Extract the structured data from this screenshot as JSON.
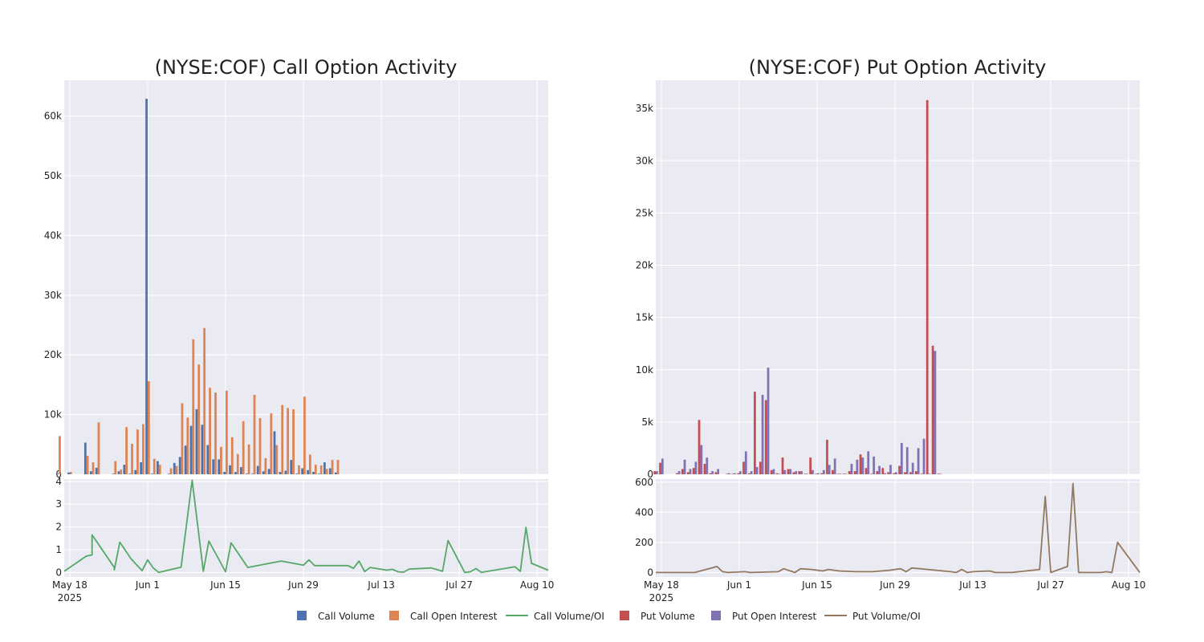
{
  "legend": [
    {
      "label": "Call Volume",
      "kind": "box",
      "color": "#4c72b0"
    },
    {
      "label": "Call Open Interest",
      "kind": "box",
      "color": "#dd8452"
    },
    {
      "label": "Call Volume/OI",
      "kind": "line",
      "color": "#55a868"
    },
    {
      "label": "Put Volume",
      "kind": "box",
      "color": "#c44e52"
    },
    {
      "label": "Put Open Interest",
      "kind": "box",
      "color": "#8172b3"
    },
    {
      "label": "Put Volume/OI",
      "kind": "line",
      "color": "#937860"
    }
  ],
  "chart_data": [
    {
      "id": "call",
      "type": "bar",
      "title": "(NYSE:COF) Call Option Activity",
      "x_unit": "date",
      "x_range": [
        "2025-05-17",
        "2025-08-12"
      ],
      "x_ticks": [
        {
          "date": "2025-05-18",
          "label": "May 18",
          "sublabel": "2025"
        },
        {
          "date": "2025-06-01",
          "label": "Jun 1"
        },
        {
          "date": "2025-06-15",
          "label": "Jun 15"
        },
        {
          "date": "2025-06-29",
          "label": "Jun 29"
        },
        {
          "date": "2025-07-13",
          "label": "Jul 13"
        },
        {
          "date": "2025-07-27",
          "label": "Jul 27"
        },
        {
          "date": "2025-08-10",
          "label": "Aug 10"
        }
      ],
      "bar_ylim": [
        0,
        66000
      ],
      "bar_yticks": [
        {
          "v": 0,
          "label": "0"
        },
        {
          "v": 10000,
          "label": "10k"
        },
        {
          "v": 20000,
          "label": "20k"
        },
        {
          "v": 30000,
          "label": "30k"
        },
        {
          "v": 40000,
          "label": "40k"
        },
        {
          "v": 50000,
          "label": "50k"
        },
        {
          "v": 60000,
          "label": "60k"
        }
      ],
      "ratio_ylim": [
        -0.2,
        4.1
      ],
      "ratio_yticks": [
        {
          "v": 0,
          "label": "0"
        },
        {
          "v": 1,
          "label": "1"
        },
        {
          "v": 2,
          "label": "2"
        },
        {
          "v": 3,
          "label": "3"
        },
        {
          "v": 4,
          "label": "4"
        }
      ],
      "series": [
        {
          "name": "Call Volume",
          "color": "#4c72b0"
        },
        {
          "name": "Call Open Interest",
          "color": "#dd8452"
        },
        {
          "name": "Call Volume/OI",
          "color": "#55a868"
        }
      ],
      "bars": [
        {
          "x": "2025-05-16",
          "volume": 100,
          "oi": 6400
        },
        {
          "x": "2025-05-18",
          "volume": 300,
          "oi": 400
        },
        {
          "x": "2025-05-21",
          "volume": 5300,
          "oi": 3100
        },
        {
          "x": "2025-05-22",
          "volume": 500,
          "oi": 2000
        },
        {
          "x": "2025-05-23",
          "volume": 1100,
          "oi": 8700
        },
        {
          "x": "2025-05-26",
          "volume": 100,
          "oi": 2200
        },
        {
          "x": "2025-05-27",
          "volume": 500,
          "oi": 800
        },
        {
          "x": "2025-05-28",
          "volume": 1600,
          "oi": 7900
        },
        {
          "x": "2025-05-29",
          "volume": 100,
          "oi": 5100
        },
        {
          "x": "2025-05-30",
          "volume": 700,
          "oi": 7500
        },
        {
          "x": "2025-05-31",
          "volume": 2000,
          "oi": 8400
        },
        {
          "x": "2025-06-01",
          "volume": 62900,
          "oi": 15600
        },
        {
          "x": "2025-06-02",
          "volume": 100,
          "oi": 2600
        },
        {
          "x": "2025-06-03",
          "volume": 2200,
          "oi": 1600
        },
        {
          "x": "2025-06-05",
          "volume": 100,
          "oi": 1000
        },
        {
          "x": "2025-06-06",
          "volume": 1900,
          "oi": 1400
        },
        {
          "x": "2025-06-07",
          "volume": 2900,
          "oi": 11900
        },
        {
          "x": "2025-06-08",
          "volume": 4800,
          "oi": 9500
        },
        {
          "x": "2025-06-09",
          "volume": 8100,
          "oi": 22600
        },
        {
          "x": "2025-06-10",
          "volume": 10900,
          "oi": 18400
        },
        {
          "x": "2025-06-11",
          "volume": 8300,
          "oi": 24500
        },
        {
          "x": "2025-06-12",
          "volume": 4900,
          "oi": 14500
        },
        {
          "x": "2025-06-13",
          "volume": 2500,
          "oi": 13700
        },
        {
          "x": "2025-06-14",
          "volume": 2500,
          "oi": 4600
        },
        {
          "x": "2025-06-15",
          "volume": 400,
          "oi": 14000
        },
        {
          "x": "2025-06-16",
          "volume": 1500,
          "oi": 6200
        },
        {
          "x": "2025-06-17",
          "volume": 400,
          "oi": 3400
        },
        {
          "x": "2025-06-18",
          "volume": 1200,
          "oi": 8900
        },
        {
          "x": "2025-06-19",
          "volume": 100,
          "oi": 5000
        },
        {
          "x": "2025-06-20",
          "volume": 100,
          "oi": 13300
        },
        {
          "x": "2025-06-21",
          "volume": 1400,
          "oi": 9400
        },
        {
          "x": "2025-06-22",
          "volume": 500,
          "oi": 2700
        },
        {
          "x": "2025-06-23",
          "volume": 900,
          "oi": 10200
        },
        {
          "x": "2025-06-24",
          "volume": 7200,
          "oi": 4900
        },
        {
          "x": "2025-06-25",
          "volume": 400,
          "oi": 11600
        },
        {
          "x": "2025-06-26",
          "volume": 600,
          "oi": 11100
        },
        {
          "x": "2025-06-27",
          "volume": 2400,
          "oi": 10900
        },
        {
          "x": "2025-06-28",
          "volume": 100,
          "oi": 1500
        },
        {
          "x": "2025-06-29",
          "volume": 1000,
          "oi": 13000
        },
        {
          "x": "2025-06-30",
          "volume": 700,
          "oi": 3300
        },
        {
          "x": "2025-07-01",
          "volume": 400,
          "oi": 1600
        },
        {
          "x": "2025-07-02",
          "volume": 100,
          "oi": 1500
        },
        {
          "x": "2025-07-03",
          "volume": 2000,
          "oi": 900
        },
        {
          "x": "2025-07-04",
          "volume": 1000,
          "oi": 2400
        },
        {
          "x": "2025-07-05",
          "volume": 300,
          "oi": 2400
        }
      ],
      "ratio": [
        {
          "x": "2025-05-17",
          "y": 0.05
        },
        {
          "x": "2025-05-21",
          "y": 0.72
        },
        {
          "x": "2025-05-22",
          "y": 0.77
        },
        {
          "x": "2025-05-22",
          "y": 1.65
        },
        {
          "x": "2025-05-26",
          "y": 0.22
        },
        {
          "x": "2025-05-26",
          "y": 0.11
        },
        {
          "x": "2025-05-27",
          "y": 1.33
        },
        {
          "x": "2025-05-29",
          "y": 0.6
        },
        {
          "x": "2025-05-31",
          "y": 0.08
        },
        {
          "x": "2025-06-01",
          "y": 0.55
        },
        {
          "x": "2025-06-02",
          "y": 0.2
        },
        {
          "x": "2025-06-03",
          "y": 0.0
        },
        {
          "x": "2025-06-04",
          "y": 0.06
        },
        {
          "x": "2025-06-07",
          "y": 0.23
        },
        {
          "x": "2025-06-09",
          "y": 4.05
        },
        {
          "x": "2025-06-11",
          "y": 0.05
        },
        {
          "x": "2025-06-12",
          "y": 1.38
        },
        {
          "x": "2025-06-15",
          "y": 0.03
        },
        {
          "x": "2025-06-16",
          "y": 1.3
        },
        {
          "x": "2025-06-19",
          "y": 0.22
        },
        {
          "x": "2025-06-25",
          "y": 0.5
        },
        {
          "x": "2025-06-29",
          "y": 0.32
        },
        {
          "x": "2025-06-30",
          "y": 0.55
        },
        {
          "x": "2025-07-01",
          "y": 0.3
        },
        {
          "x": "2025-07-07",
          "y": 0.3
        },
        {
          "x": "2025-07-08",
          "y": 0.18
        },
        {
          "x": "2025-07-09",
          "y": 0.5
        },
        {
          "x": "2025-07-10",
          "y": 0.04
        },
        {
          "x": "2025-07-11",
          "y": 0.22
        },
        {
          "x": "2025-07-14",
          "y": 0.1
        },
        {
          "x": "2025-07-15",
          "y": 0.14
        },
        {
          "x": "2025-07-16",
          "y": 0.03
        },
        {
          "x": "2025-07-17",
          "y": 0.01
        },
        {
          "x": "2025-07-18",
          "y": 0.15
        },
        {
          "x": "2025-07-22",
          "y": 0.2
        },
        {
          "x": "2025-07-24",
          "y": 0.05
        },
        {
          "x": "2025-07-25",
          "y": 1.4
        },
        {
          "x": "2025-07-28",
          "y": 0.0
        },
        {
          "x": "2025-07-29",
          "y": 0.03
        },
        {
          "x": "2025-07-30",
          "y": 0.17
        },
        {
          "x": "2025-07-31",
          "y": 0.0
        },
        {
          "x": "2025-08-06",
          "y": 0.25
        },
        {
          "x": "2025-08-07",
          "y": 0.05
        },
        {
          "x": "2025-08-08",
          "y": 1.98
        },
        {
          "x": "2025-08-09",
          "y": 0.4
        },
        {
          "x": "2025-08-12",
          "y": 0.1
        }
      ]
    },
    {
      "id": "put",
      "type": "bar",
      "title": "(NYSE:COF) Put Option Activity",
      "x_unit": "date",
      "x_range": [
        "2025-05-17",
        "2025-08-12"
      ],
      "x_ticks": [
        {
          "date": "2025-05-18",
          "label": "May 18",
          "sublabel": "2025"
        },
        {
          "date": "2025-06-01",
          "label": "Jun 1"
        },
        {
          "date": "2025-06-15",
          "label": "Jun 15"
        },
        {
          "date": "2025-06-29",
          "label": "Jun 29"
        },
        {
          "date": "2025-07-13",
          "label": "Jul 13"
        },
        {
          "date": "2025-07-27",
          "label": "Jul 27"
        },
        {
          "date": "2025-08-10",
          "label": "Aug 10"
        }
      ],
      "bar_ylim": [
        0,
        37700
      ],
      "bar_yticks": [
        {
          "v": 0,
          "label": "0"
        },
        {
          "v": 5000,
          "label": "5k"
        },
        {
          "v": 10000,
          "label": "10k"
        },
        {
          "v": 15000,
          "label": "15k"
        },
        {
          "v": 20000,
          "label": "20k"
        },
        {
          "v": 25000,
          "label": "25k"
        },
        {
          "v": 30000,
          "label": "30k"
        },
        {
          "v": 35000,
          "label": "35k"
        }
      ],
      "ratio_ylim": [
        -30,
        620
      ],
      "ratio_yticks": [
        {
          "v": 0,
          "label": "0"
        },
        {
          "v": 200,
          "label": "200"
        },
        {
          "v": 400,
          "label": "400"
        },
        {
          "v": 600,
          "label": "600"
        }
      ],
      "series": [
        {
          "name": "Put Volume",
          "color": "#c44e52"
        },
        {
          "name": "Put Open Interest",
          "color": "#8172b3"
        },
        {
          "name": "Put Volume/OI",
          "color": "#937860"
        }
      ],
      "bars": [
        {
          "x": "2025-05-17",
          "volume": 300,
          "oi": 300
        },
        {
          "x": "2025-05-18",
          "volume": 1100,
          "oi": 1500
        },
        {
          "x": "2025-05-21",
          "volume": 100,
          "oi": 300
        },
        {
          "x": "2025-05-22",
          "volume": 500,
          "oi": 1400
        },
        {
          "x": "2025-05-23",
          "volume": 200,
          "oi": 500
        },
        {
          "x": "2025-05-24",
          "volume": 600,
          "oi": 1200
        },
        {
          "x": "2025-05-25",
          "volume": 5200,
          "oi": 2800
        },
        {
          "x": "2025-05-26",
          "volume": 1000,
          "oi": 1600
        },
        {
          "x": "2025-05-27",
          "volume": 100,
          "oi": 300
        },
        {
          "x": "2025-05-28",
          "volume": 200,
          "oi": 500
        },
        {
          "x": "2025-05-30",
          "volume": 50,
          "oi": 100
        },
        {
          "x": "2025-05-31",
          "volume": 50,
          "oi": 100
        },
        {
          "x": "2025-06-01",
          "volume": 100,
          "oi": 300
        },
        {
          "x": "2025-06-02",
          "volume": 1200,
          "oi": 2200
        },
        {
          "x": "2025-06-03",
          "volume": 100,
          "oi": 300
        },
        {
          "x": "2025-06-04",
          "volume": 7900,
          "oi": 700
        },
        {
          "x": "2025-06-05",
          "volume": 1200,
          "oi": 7600
        },
        {
          "x": "2025-06-06",
          "volume": 7100,
          "oi": 10200
        },
        {
          "x": "2025-06-07",
          "volume": 400,
          "oi": 500
        },
        {
          "x": "2025-06-08",
          "volume": 100,
          "oi": 50
        },
        {
          "x": "2025-06-09",
          "volume": 1600,
          "oi": 400
        },
        {
          "x": "2025-06-10",
          "volume": 500,
          "oi": 500
        },
        {
          "x": "2025-06-11",
          "volume": 200,
          "oi": 300
        },
        {
          "x": "2025-06-12",
          "volume": 300,
          "oi": 300
        },
        {
          "x": "2025-06-13",
          "volume": 50,
          "oi": 50
        },
        {
          "x": "2025-06-14",
          "volume": 1600,
          "oi": 400
        },
        {
          "x": "2025-06-15",
          "volume": 50,
          "oi": 100
        },
        {
          "x": "2025-06-16",
          "volume": 100,
          "oi": 400
        },
        {
          "x": "2025-06-17",
          "volume": 3300,
          "oi": 900
        },
        {
          "x": "2025-06-18",
          "volume": 400,
          "oi": 1500
        },
        {
          "x": "2025-06-19",
          "volume": 50,
          "oi": 50
        },
        {
          "x": "2025-06-20",
          "volume": 50,
          "oi": 50
        },
        {
          "x": "2025-06-21",
          "volume": 300,
          "oi": 1000
        },
        {
          "x": "2025-06-22",
          "volume": 300,
          "oi": 1400
        },
        {
          "x": "2025-06-23",
          "volume": 1900,
          "oi": 1600
        },
        {
          "x": "2025-06-24",
          "volume": 600,
          "oi": 2200
        },
        {
          "x": "2025-06-25",
          "volume": 50,
          "oi": 1700
        },
        {
          "x": "2025-06-26",
          "volume": 300,
          "oi": 800
        },
        {
          "x": "2025-06-27",
          "volume": 600,
          "oi": 100
        },
        {
          "x": "2025-06-28",
          "volume": 200,
          "oi": 900
        },
        {
          "x": "2025-06-29",
          "volume": 100,
          "oi": 200
        },
        {
          "x": "2025-06-30",
          "volume": 800,
          "oi": 3000
        },
        {
          "x": "2025-07-01",
          "volume": 200,
          "oi": 2600
        },
        {
          "x": "2025-07-02",
          "volume": 200,
          "oi": 1100
        },
        {
          "x": "2025-07-03",
          "volume": 300,
          "oi": 2500
        },
        {
          "x": "2025-07-04",
          "volume": 50,
          "oi": 3400
        },
        {
          "x": "2025-07-05",
          "volume": 35800,
          "oi": 50
        },
        {
          "x": "2025-07-06",
          "volume": 12300,
          "oi": 11800
        },
        {
          "x": "2025-07-07",
          "volume": 50,
          "oi": 50
        }
      ],
      "ratio": [
        {
          "x": "2025-05-17",
          "y": 0
        },
        {
          "x": "2025-05-24",
          "y": 0
        },
        {
          "x": "2025-05-28",
          "y": 40
        },
        {
          "x": "2025-05-29",
          "y": 5
        },
        {
          "x": "2025-05-30",
          "y": 0
        },
        {
          "x": "2025-06-02",
          "y": 5
        },
        {
          "x": "2025-06-03",
          "y": 0
        },
        {
          "x": "2025-06-08",
          "y": 5
        },
        {
          "x": "2025-06-09",
          "y": 25
        },
        {
          "x": "2025-06-11",
          "y": 0
        },
        {
          "x": "2025-06-12",
          "y": 25
        },
        {
          "x": "2025-06-14",
          "y": 20
        },
        {
          "x": "2025-06-16",
          "y": 10
        },
        {
          "x": "2025-06-17",
          "y": 20
        },
        {
          "x": "2025-06-19",
          "y": 10
        },
        {
          "x": "2025-06-22",
          "y": 5
        },
        {
          "x": "2025-06-25",
          "y": 5
        },
        {
          "x": "2025-06-28",
          "y": 15
        },
        {
          "x": "2025-06-30",
          "y": 25
        },
        {
          "x": "2025-07-01",
          "y": 5
        },
        {
          "x": "2025-07-02",
          "y": 30
        },
        {
          "x": "2025-07-09",
          "y": 5
        },
        {
          "x": "2025-07-10",
          "y": 0
        },
        {
          "x": "2025-07-11",
          "y": 20
        },
        {
          "x": "2025-07-12",
          "y": 0
        },
        {
          "x": "2025-07-13",
          "y": 5
        },
        {
          "x": "2025-07-16",
          "y": 10
        },
        {
          "x": "2025-07-17",
          "y": 0
        },
        {
          "x": "2025-07-20",
          "y": 0
        },
        {
          "x": "2025-07-25",
          "y": 20
        },
        {
          "x": "2025-07-26",
          "y": 505
        },
        {
          "x": "2025-07-27",
          "y": 0
        },
        {
          "x": "2025-07-30",
          "y": 40
        },
        {
          "x": "2025-07-31",
          "y": 590
        },
        {
          "x": "2025-08-01",
          "y": 0
        },
        {
          "x": "2025-08-04",
          "y": 0
        },
        {
          "x": "2025-08-05",
          "y": 0
        },
        {
          "x": "2025-08-06",
          "y": 5
        },
        {
          "x": "2025-08-07",
          "y": 0
        },
        {
          "x": "2025-08-08",
          "y": 200
        },
        {
          "x": "2025-08-12",
          "y": 0
        }
      ]
    }
  ]
}
